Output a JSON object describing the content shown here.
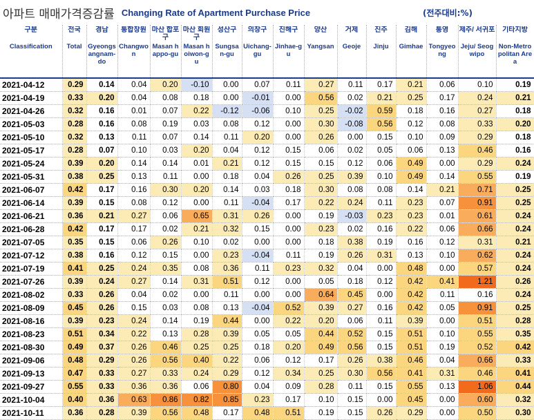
{
  "header": {
    "title_ko": "아파트 매매가격증감률",
    "title_en": "Changing Rate of Apartment Purchase Price",
    "unit": "(전주대비:%)"
  },
  "table": {
    "columns": [
      {
        "ko": "구분",
        "en": "Classification"
      },
      {
        "ko": "전국",
        "en": "Total"
      },
      {
        "ko": "경남",
        "en": "Gyeongsangnam-do"
      },
      {
        "ko": "통합창원",
        "en": "Changwon"
      },
      {
        "ko": "마산 합포구",
        "en": "Masan happo-gu"
      },
      {
        "ko": "마산 회원구",
        "en": "Masan hoiwon-gu"
      },
      {
        "ko": "성산구",
        "en": "Sungsan-gu"
      },
      {
        "ko": "의창구",
        "en": "Uichang-gu"
      },
      {
        "ko": "진해구",
        "en": "Jinhae-gu"
      },
      {
        "ko": "양산",
        "en": "Yangsan"
      },
      {
        "ko": "거제",
        "en": "Geoje"
      },
      {
        "ko": "진주",
        "en": "Jinju"
      },
      {
        "ko": "김해",
        "en": "Gimhae"
      },
      {
        "ko": "통영",
        "en": "Tongyeong"
      },
      {
        "ko": "제주/ 서귀포",
        "en": "Jeju/ Seogwipo"
      },
      {
        "ko": "기타지방",
        "en": "Non-Metropolitan Area"
      }
    ],
    "rows": [
      [
        "2021-04-12",
        "0.29",
        "0.14",
        "0.04",
        "0.20",
        "-0.10",
        "0.00",
        "0.07",
        "0.11",
        "0.27",
        "0.11",
        "0.17",
        "0.21",
        "0.06",
        "0.10",
        "0.19"
      ],
      [
        "2021-04-19",
        "0.33",
        "0.20",
        "0.04",
        "0.08",
        "0.18",
        "0.00",
        "-0.01",
        "0.00",
        "0.56",
        "0.02",
        "0.21",
        "0.25",
        "0.17",
        "0.24",
        "0.21"
      ],
      [
        "2021-04-26",
        "0.32",
        "0.16",
        "0.01",
        "0.07",
        "0.22",
        "-0.12",
        "-0.06",
        "0.10",
        "0.25",
        "-0.02",
        "0.59",
        "0.18",
        "0.16",
        "0.27",
        "0.18"
      ],
      [
        "2021-05-03",
        "0.28",
        "0.16",
        "0.08",
        "0.19",
        "0.03",
        "0.08",
        "0.12",
        "0.00",
        "0.30",
        "-0.08",
        "0.56",
        "0.12",
        "0.08",
        "0.33",
        "0.20"
      ],
      [
        "2021-05-10",
        "0.32",
        "0.13",
        "0.11",
        "0.07",
        "0.14",
        "0.11",
        "0.20",
        "0.00",
        "0.26",
        "0.00",
        "0.15",
        "0.10",
        "0.09",
        "0.29",
        "0.18"
      ],
      [
        "2021-05-17",
        "0.28",
        "0.07",
        "0.10",
        "0.03",
        "0.20",
        "0.04",
        "0.12",
        "0.15",
        "0.06",
        "0.02",
        "0.05",
        "0.06",
        "0.13",
        "0.46",
        "0.16"
      ],
      [
        "2021-05-24",
        "0.39",
        "0.20",
        "0.14",
        "0.14",
        "0.01",
        "0.21",
        "0.12",
        "0.15",
        "0.15",
        "0.12",
        "0.06",
        "0.49",
        "0.00",
        "0.29",
        "0.24"
      ],
      [
        "2021-05-31",
        "0.38",
        "0.25",
        "0.13",
        "0.11",
        "0.00",
        "0.18",
        "0.04",
        "0.26",
        "0.25",
        "0.39",
        "0.10",
        "0.49",
        "0.14",
        "0.55",
        "0.19"
      ],
      [
        "2021-06-07",
        "0.42",
        "0.17",
        "0.16",
        "0.30",
        "0.20",
        "0.14",
        "0.03",
        "0.18",
        "0.30",
        "0.08",
        "0.08",
        "0.14",
        "0.21",
        "0.71",
        "0.25"
      ],
      [
        "2021-06-14",
        "0.39",
        "0.15",
        "0.08",
        "0.12",
        "0.00",
        "0.11",
        "-0.04",
        "0.17",
        "0.22",
        "0.24",
        "0.11",
        "0.23",
        "0.07",
        "0.91",
        "0.25"
      ],
      [
        "2021-06-21",
        "0.36",
        "0.21",
        "0.27",
        "0.06",
        "0.65",
        "0.31",
        "0.26",
        "0.00",
        "0.19",
        "-0.03",
        "0.23",
        "0.23",
        "0.01",
        "0.61",
        "0.24"
      ],
      [
        "2021-06-28",
        "0.42",
        "0.17",
        "0.17",
        "0.02",
        "0.21",
        "0.32",
        "0.15",
        "0.00",
        "0.23",
        "0.02",
        "0.16",
        "0.22",
        "0.06",
        "0.66",
        "0.24"
      ],
      [
        "2021-07-05",
        "0.35",
        "0.15",
        "0.06",
        "0.26",
        "0.10",
        "0.02",
        "0.00",
        "0.00",
        "0.18",
        "0.38",
        "0.19",
        "0.16",
        "0.12",
        "0.31",
        "0.21"
      ],
      [
        "2021-07-12",
        "0.38",
        "0.16",
        "0.12",
        "0.15",
        "0.00",
        "0.23",
        "-0.04",
        "0.11",
        "0.19",
        "0.26",
        "0.31",
        "0.13",
        "0.10",
        "0.62",
        "0.24"
      ],
      [
        "2021-07-19",
        "0.41",
        "0.25",
        "0.24",
        "0.35",
        "0.08",
        "0.36",
        "0.11",
        "0.23",
        "0.32",
        "0.04",
        "0.00",
        "0.48",
        "0.00",
        "0.57",
        "0.24"
      ],
      [
        "2021-07-26",
        "0.39",
        "0.24",
        "0.27",
        "0.14",
        "0.31",
        "0.51",
        "0.12",
        "0.00",
        "0.05",
        "0.18",
        "0.12",
        "0.42",
        "0.41",
        "1.21",
        "0.26"
      ],
      [
        "2021-08-02",
        "0.33",
        "0.26",
        "0.04",
        "0.02",
        "0.00",
        "0.11",
        "0.00",
        "0.00",
        "0.64",
        "0.45",
        "0.00",
        "0.42",
        "0.11",
        "0.16",
        "0.24"
      ],
      [
        "2021-08-09",
        "0.45",
        "0.26",
        "0.15",
        "0.03",
        "0.08",
        "0.13",
        "-0.04",
        "0.52",
        "0.39",
        "0.27",
        "0.16",
        "0.42",
        "0.05",
        "0.91",
        "0.25"
      ],
      [
        "2021-08-16",
        "0.39",
        "0.23",
        "0.24",
        "0.14",
        "0.19",
        "0.44",
        "0.00",
        "0.22",
        "0.20",
        "0.06",
        "0.11",
        "0.39",
        "0.00",
        "0.51",
        "0.28"
      ],
      [
        "2021-08-23",
        "0.51",
        "0.34",
        "0.22",
        "0.13",
        "0.28",
        "0.39",
        "0.05",
        "0.05",
        "0.44",
        "0.52",
        "0.15",
        "0.51",
        "0.10",
        "0.55",
        "0.35"
      ],
      [
        "2021-08-30",
        "0.49",
        "0.37",
        "0.26",
        "0.46",
        "0.25",
        "0.25",
        "0.18",
        "0.20",
        "0.49",
        "0.56",
        "0.15",
        "0.51",
        "0.19",
        "0.52",
        "0.42"
      ],
      [
        "2021-09-06",
        "0.48",
        "0.29",
        "0.26",
        "0.56",
        "0.40",
        "0.22",
        "0.06",
        "0.12",
        "0.17",
        "0.26",
        "0.38",
        "0.46",
        "0.04",
        "0.66",
        "0.33"
      ],
      [
        "2021-09-13",
        "0.47",
        "0.33",
        "0.27",
        "0.33",
        "0.24",
        "0.29",
        "0.12",
        "0.34",
        "0.25",
        "0.30",
        "0.56",
        "0.41",
        "0.31",
        "0.46",
        "0.41"
      ],
      [
        "2021-09-27",
        "0.55",
        "0.33",
        "0.36",
        "0.36",
        "0.06",
        "0.80",
        "0.04",
        "0.09",
        "0.28",
        "0.11",
        "0.15",
        "0.55",
        "0.13",
        "1.06",
        "0.44"
      ],
      [
        "2021-10-04",
        "0.40",
        "0.36",
        "0.63",
        "0.86",
        "0.82",
        "0.85",
        "0.23",
        "0.17",
        "0.10",
        "0.15",
        "0.00",
        "0.45",
        "0.00",
        "0.60",
        "0.32"
      ],
      [
        "2021-10-11",
        "0.36",
        "0.28",
        "0.39",
        "0.56",
        "0.48",
        "0.17",
        "0.48",
        "0.51",
        "0.19",
        "0.15",
        "0.26",
        "0.29",
        "0.00",
        "0.50",
        "0.30"
      ]
    ]
  }
}
